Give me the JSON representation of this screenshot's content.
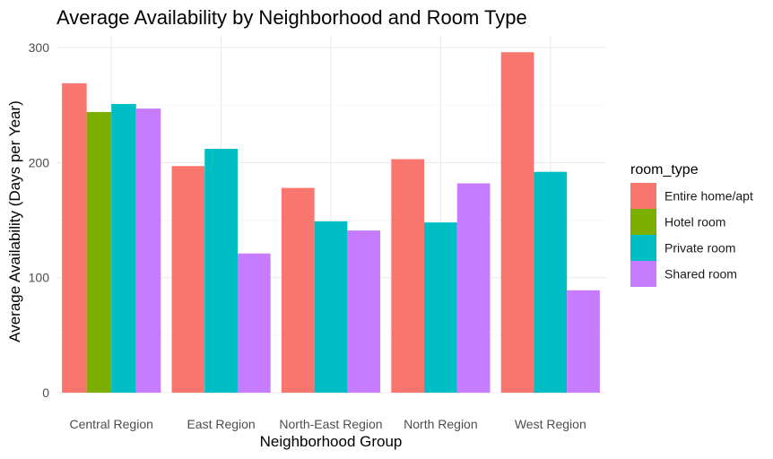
{
  "chart_data": {
    "type": "bar",
    "title": "Average Availability by Neighborhood and Room Type",
    "xlabel": "Neighborhood Group",
    "ylabel": "Average Availability (Days per Year)",
    "categories": [
      "Central Region",
      "East Region",
      "North-East Region",
      "North Region",
      "West Region"
    ],
    "ylim": [
      0,
      310
    ],
    "yticks": [
      0,
      100,
      200,
      300
    ],
    "grid": true,
    "legend": {
      "title": "room_type",
      "position": "right"
    },
    "series": [
      {
        "name": "Entire home/apt",
        "color": "#F8766D",
        "values": [
          269,
          197,
          178,
          203,
          296
        ]
      },
      {
        "name": "Hotel room",
        "color": "#7CAE00",
        "values": [
          244,
          null,
          null,
          null,
          null
        ]
      },
      {
        "name": "Private room",
        "color": "#00BFC4",
        "values": [
          251,
          212,
          149,
          148,
          192
        ]
      },
      {
        "name": "Shared room",
        "color": "#C77CFF",
        "values": [
          247,
          121,
          141,
          182,
          89
        ]
      }
    ]
  }
}
